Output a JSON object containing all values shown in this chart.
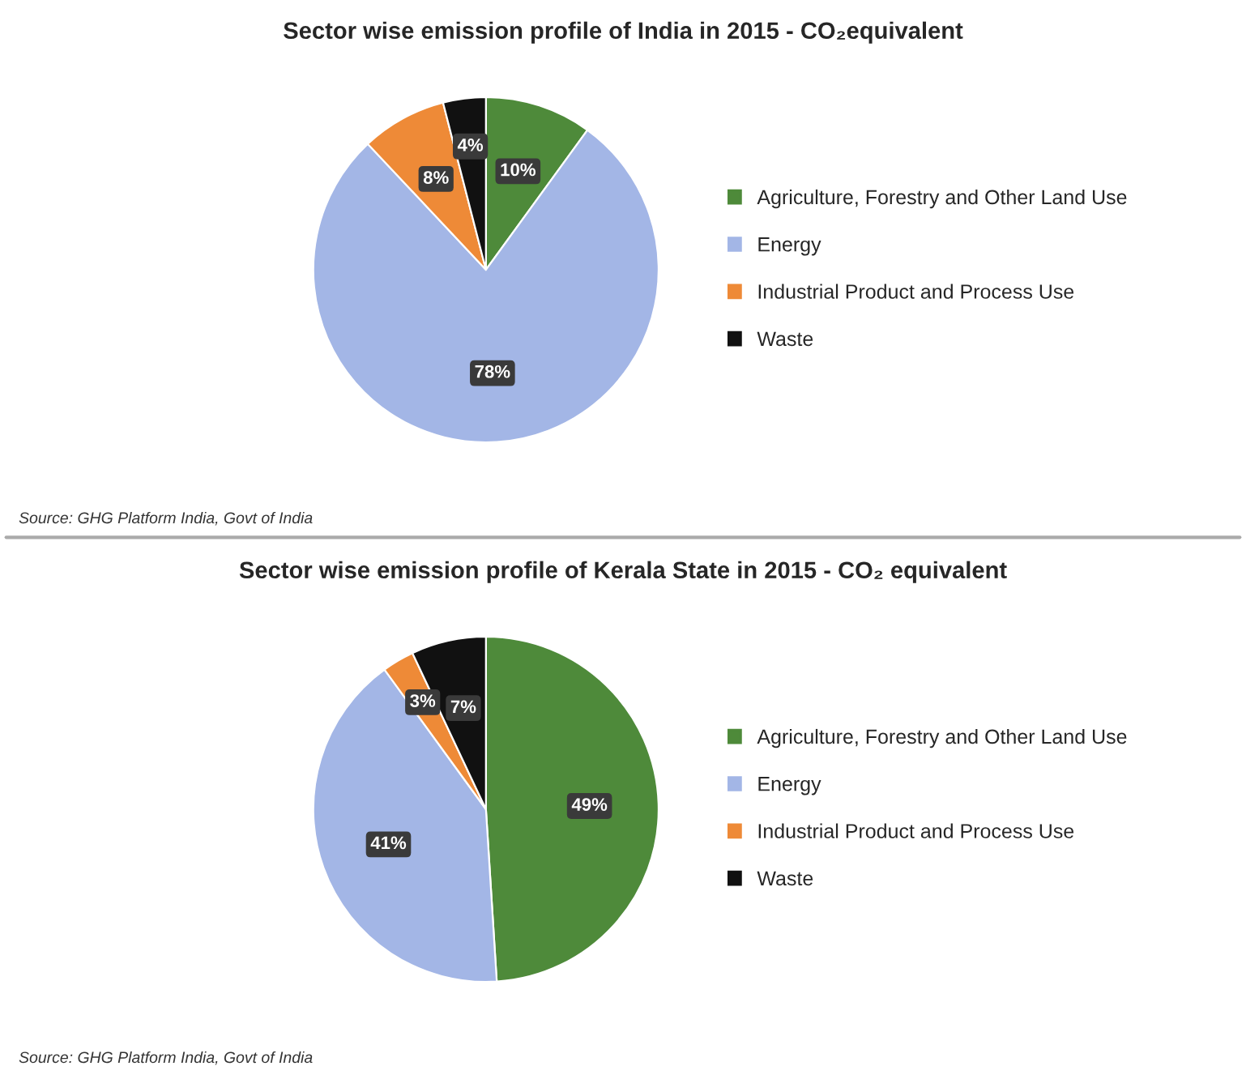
{
  "chart_data": [
    {
      "type": "pie",
      "title": "Sector wise emission profile of India in 2015 - CO₂equivalent",
      "categories": [
        "Agriculture, Forestry and Other Land Use",
        "Energy",
        "Industrial Product and Process Use",
        "Waste"
      ],
      "values": [
        10,
        78,
        8,
        4
      ],
      "colors": [
        "#4e8a3a",
        "#a3b6e6",
        "#ee8a37",
        "#111111"
      ],
      "value_labels": [
        "10%",
        "78%",
        "8%",
        "4%"
      ],
      "legend": "right",
      "annotations": [
        "Source: GHG Platform India, Govt of India"
      ]
    },
    {
      "type": "pie",
      "title": "Sector wise emission profile of Kerala State in 2015 - CO₂ equivalent",
      "categories": [
        "Agriculture, Forestry and Other Land Use",
        "Energy",
        "Industrial Product and Process Use",
        "Waste"
      ],
      "values": [
        49,
        41,
        3,
        7
      ],
      "colors": [
        "#4e8a3a",
        "#a3b6e6",
        "#ee8a37",
        "#111111"
      ],
      "value_labels": [
        "49%",
        "41%",
        "3%",
        "7%"
      ],
      "legend": "right",
      "annotations": [
        "Source: GHG Platform India, Govt of India"
      ]
    }
  ]
}
